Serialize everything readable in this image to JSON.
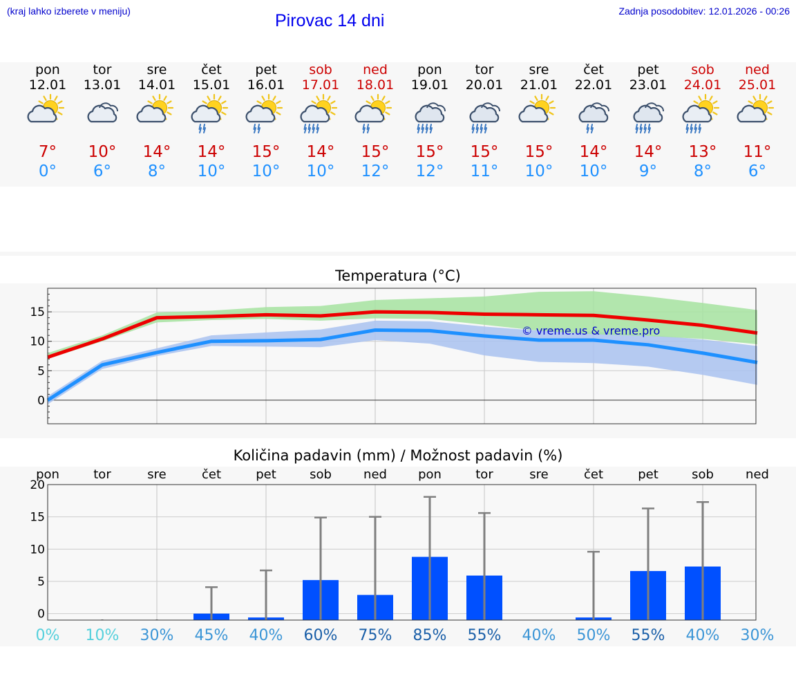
{
  "header": {
    "hint": "(kraj lahko izberete v meniju)",
    "title": "Pirovac 14 dni",
    "updated": "Zadnja posodobitev: 12.01.2026 - 00:26"
  },
  "colors": {
    "max_temp": "#cc0000",
    "min_temp": "#1e90ff",
    "weekend": "#cc0000",
    "max_band": "#a6e3a0",
    "min_band": "#a9c2f0",
    "bar": "#0050ff",
    "whisker": "#7f7f7f",
    "watermark": "#0000cc"
  },
  "forecast": [
    {
      "day": "pon",
      "date": "12.01",
      "weekend": false,
      "icon": "sun-cloud-icon",
      "max": "7°",
      "min": "0°"
    },
    {
      "day": "tor",
      "date": "13.01",
      "weekend": false,
      "icon": "cloud-icon",
      "max": "10°",
      "min": "6°"
    },
    {
      "day": "sre",
      "date": "14.01",
      "weekend": false,
      "icon": "sun-cloud-icon",
      "max": "14°",
      "min": "8°"
    },
    {
      "day": "čet",
      "date": "15.01",
      "weekend": false,
      "icon": "sun-cloud-rain-light-icon",
      "max": "14°",
      "min": "10°"
    },
    {
      "day": "pet",
      "date": "16.01",
      "weekend": false,
      "icon": "sun-cloud-rain-light-icon",
      "max": "15°",
      "min": "10°"
    },
    {
      "day": "sob",
      "date": "17.01",
      "weekend": true,
      "icon": "sun-cloud-rain-icon",
      "max": "14°",
      "min": "10°"
    },
    {
      "day": "ned",
      "date": "18.01",
      "weekend": true,
      "icon": "sun-cloud-rain-light-icon",
      "max": "15°",
      "min": "12°"
    },
    {
      "day": "pon",
      "date": "19.01",
      "weekend": false,
      "icon": "cloud-rain-icon",
      "max": "15°",
      "min": "12°"
    },
    {
      "day": "tor",
      "date": "20.01",
      "weekend": false,
      "icon": "cloud-rain-icon",
      "max": "15°",
      "min": "11°"
    },
    {
      "day": "sre",
      "date": "21.01",
      "weekend": false,
      "icon": "sun-cloud-icon",
      "max": "15°",
      "min": "10°"
    },
    {
      "day": "čet",
      "date": "22.01",
      "weekend": false,
      "icon": "cloud-rain-light-icon",
      "max": "14°",
      "min": "10°"
    },
    {
      "day": "pet",
      "date": "23.01",
      "weekend": false,
      "icon": "cloud-rain-icon",
      "max": "14°",
      "min": "9°"
    },
    {
      "day": "sob",
      "date": "24.01",
      "weekend": true,
      "icon": "sun-cloud-rain-icon",
      "max": "13°",
      "min": "8°"
    },
    {
      "day": "ned",
      "date": "25.01",
      "weekend": true,
      "icon": "sun-cloud-icon",
      "max": "11°",
      "min": "6°"
    }
  ],
  "chart_data": [
    {
      "type": "line",
      "title": "Temperatura (°C)",
      "xlabel": "",
      "ylabel": "",
      "ylim": [
        -4,
        19
      ],
      "yticks": [
        0,
        5,
        10,
        15
      ],
      "x": [
        0,
        1,
        2,
        3,
        4,
        5,
        6,
        7,
        8,
        9,
        10,
        11,
        12,
        13
      ],
      "grid": true,
      "watermark": "© vreme.us & vreme.pro",
      "series": [
        {
          "name": "max",
          "values": [
            7.3,
            10.4,
            14.0,
            14.2,
            14.5,
            14.3,
            15.0,
            14.9,
            14.6,
            14.5,
            14.4,
            13.6,
            12.7,
            11.4
          ],
          "band_low": [
            7.0,
            10.0,
            13.2,
            13.6,
            13.8,
            13.5,
            13.9,
            13.8,
            12.8,
            11.8,
            11.2,
            10.9,
            10.4,
            9.5
          ],
          "band_high": [
            8.0,
            11.0,
            14.9,
            15.2,
            15.8,
            16.0,
            17.0,
            17.3,
            17.6,
            18.4,
            18.5,
            17.6,
            16.5,
            15.3
          ]
        },
        {
          "name": "min",
          "values": [
            0.0,
            6.0,
            8.1,
            10.0,
            10.1,
            10.3,
            11.9,
            11.8,
            10.9,
            10.2,
            10.2,
            9.4,
            8.0,
            6.4
          ],
          "band_low": [
            -0.7,
            5.3,
            7.5,
            9.2,
            9.1,
            9.0,
            10.2,
            9.6,
            7.6,
            6.5,
            6.3,
            5.7,
            4.3,
            2.6
          ],
          "band_high": [
            0.7,
            6.7,
            8.8,
            11.0,
            11.5,
            12.0,
            13.5,
            13.4,
            12.5,
            11.8,
            11.6,
            11.1,
            10.3,
            9.2
          ]
        }
      ]
    },
    {
      "type": "bar",
      "title": "Količina padavin (mm) / Možnost padavin (%)",
      "categories": [
        "pon",
        "tor",
        "sre",
        "čet",
        "pet",
        "sob",
        "ned",
        "pon",
        "tor",
        "sre",
        "čet",
        "pet",
        "sob",
        "ned"
      ],
      "ylim": [
        -1,
        20
      ],
      "yticks": [
        0,
        5,
        10,
        15,
        20
      ],
      "grid": true,
      "values": [
        0,
        0,
        0,
        1.0,
        0.4,
        6.2,
        3.9,
        9.8,
        6.9,
        0,
        0.4,
        7.6,
        8.3,
        0
      ],
      "upper": [
        0,
        0.1,
        0.1,
        5.1,
        7.7,
        15.9,
        16.0,
        19.1,
        16.6,
        0,
        10.6,
        17.3,
        18.3,
        0
      ],
      "probability": [
        "0%",
        "10%",
        "30%",
        "45%",
        "40%",
        "60%",
        "75%",
        "85%",
        "55%",
        "40%",
        "50%",
        "55%",
        "40%",
        "30%"
      ],
      "probability_values": [
        0,
        10,
        30,
        45,
        40,
        60,
        75,
        85,
        55,
        40,
        50,
        55,
        40,
        30
      ]
    }
  ]
}
